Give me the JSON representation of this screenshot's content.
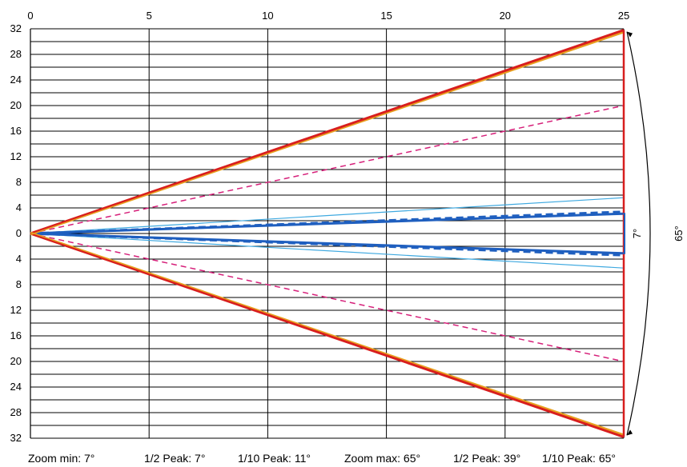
{
  "chart_data": {
    "type": "line",
    "title": "",
    "xlabel": "",
    "ylabel": "",
    "xlim": [
      0,
      25
    ],
    "ylim": [
      -32,
      32
    ],
    "x_ticks": [
      "0",
      "5",
      "10",
      "15",
      "20",
      "25"
    ],
    "y_ticks": [
      "32",
      "28",
      "24",
      "20",
      "16",
      "12",
      "8",
      "4",
      "0",
      "4",
      "8",
      "12",
      "16",
      "20",
      "24",
      "28",
      "32"
    ],
    "grid": true,
    "x_tick_position": "top",
    "series": [
      {
        "name": "Zoom min: 7°",
        "color": "#1f5fbf",
        "style": "solid-thick",
        "upper": [
          [
            0,
            0
          ],
          [
            25,
            3.1
          ]
        ],
        "lower": [
          [
            0,
            0
          ],
          [
            25,
            -3.1
          ]
        ]
      },
      {
        "name": "1/2 Peak: 7°",
        "color": "#1f5fbf",
        "style": "dashed-thick",
        "upper": [
          [
            0,
            0
          ],
          [
            25,
            3.4
          ]
        ],
        "lower": [
          [
            0,
            0
          ],
          [
            25,
            -3.4
          ]
        ]
      },
      {
        "name": "1/10 Peak: 11°",
        "color": "#3fa9e0",
        "style": "solid-thin",
        "upper": [
          [
            0,
            0
          ],
          [
            25,
            5.6
          ]
        ],
        "lower": [
          [
            0,
            0
          ],
          [
            25,
            -5.4
          ]
        ]
      },
      {
        "name": "Zoom max: 65°",
        "color": "#e8a020",
        "style": "solid-thick",
        "upper": [
          [
            0,
            0
          ],
          [
            25,
            31.6
          ]
        ],
        "lower": [
          [
            0,
            0
          ],
          [
            25,
            -31.6
          ]
        ]
      },
      {
        "name": "1/2 Peak: 39°",
        "color": "#d6207a",
        "style": "dashed",
        "upper": [
          [
            0,
            0
          ],
          [
            25,
            20
          ]
        ],
        "lower": [
          [
            0,
            0
          ],
          [
            25,
            -20
          ]
        ]
      },
      {
        "name": "1/10 Peak: 65°",
        "color": "#d81e1e",
        "style": "solid-thick",
        "upper": [
          [
            0,
            0
          ],
          [
            25,
            31.8
          ]
        ],
        "lower": [
          [
            0,
            0
          ],
          [
            25,
            -31.8
          ]
        ]
      }
    ],
    "annotations": [
      {
        "text": "7°",
        "color": "#1f5fbf"
      },
      {
        "text": "65°",
        "color": "#000000"
      }
    ]
  },
  "legend": [
    "Zoom min: 7°",
    "1/2 Peak: 7°",
    "1/10 Peak: 11°",
    "Zoom max: 65°",
    "1/2 Peak: 39°",
    "1/10 Peak: 65°"
  ]
}
